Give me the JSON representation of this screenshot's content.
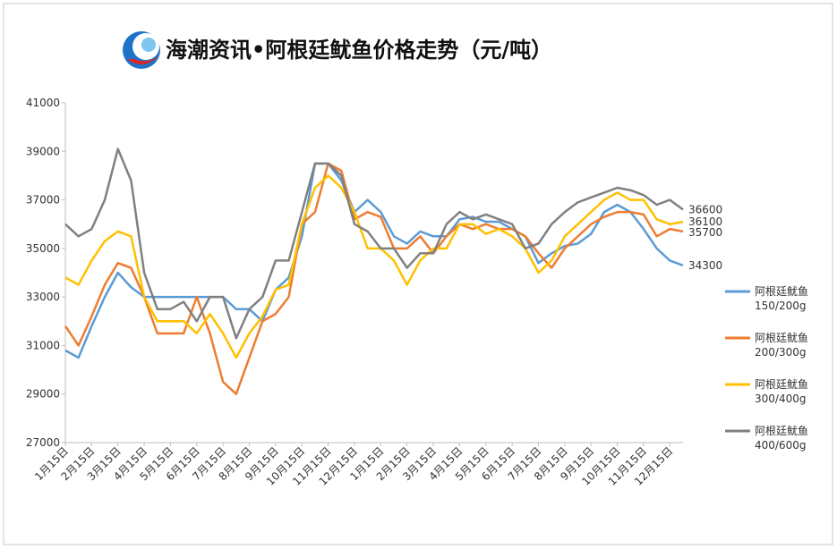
{
  "chart_data": {
    "type": "line",
    "title": "海潮资讯•阿根廷鱿鱼价格走势（元/吨）",
    "categories": [
      "1月15日",
      null,
      "2月15日",
      null,
      "3月15日",
      null,
      "4月15日",
      null,
      "5月15日",
      null,
      "6月15日",
      null,
      "7月15日",
      null,
      "8月15日",
      null,
      "9月15日",
      null,
      "10月15日",
      null,
      "11月15日",
      null,
      "12月15日",
      null,
      "1月15日",
      null,
      "2月15日",
      null,
      "3月15日",
      null,
      "4月15日",
      null,
      "5月15日",
      null,
      "6月15日",
      null,
      "7月15日",
      null,
      "8月15日",
      null,
      "9月15日",
      null,
      "10月15日",
      null,
      "11月15日",
      null,
      "12月15日",
      null
    ],
    "series": [
      {
        "name": "阿根廷鱿鱼\n150/200g",
        "color": "#5b9bd5",
        "values": [
          30800,
          30500,
          31800,
          33000,
          34000,
          33400,
          33000,
          33000,
          33000,
          33000,
          33000,
          33000,
          33000,
          32500,
          32500,
          32000,
          33300,
          33800,
          35500,
          38500,
          38500,
          37800,
          36500,
          37000,
          36500,
          35500,
          35200,
          35700,
          35500,
          35500,
          36200,
          36300,
          36100,
          36100,
          35800,
          35500,
          34400,
          34800,
          35100,
          35200,
          35600,
          36500,
          36800,
          36500,
          35800,
          35000,
          34500,
          34300
        ]
      },
      {
        "name": "阿根廷鱿鱼\n200/300g",
        "color": "#ed7d31",
        "values": [
          31800,
          31000,
          32200,
          33500,
          34400,
          34200,
          33000,
          31500,
          31500,
          31500,
          33000,
          31500,
          29500,
          29000,
          30500,
          32000,
          32300,
          33000,
          36000,
          36500,
          38500,
          38200,
          36200,
          36500,
          36300,
          35000,
          35000,
          35500,
          34800,
          35500,
          36000,
          35800,
          36000,
          35800,
          35800,
          35500,
          34800,
          34200,
          35000,
          35500,
          36000,
          36300,
          36500,
          36500,
          36400,
          35500,
          35800,
          35700
        ]
      },
      {
        "name": "阿根廷鱿鱼\n300/400g",
        "color": "#ffc000",
        "values": [
          33800,
          33500,
          34500,
          35300,
          35700,
          35500,
          33000,
          32000,
          32000,
          32000,
          31500,
          32300,
          31500,
          30500,
          31500,
          32200,
          33300,
          33500,
          36000,
          37500,
          38000,
          37500,
          36500,
          35000,
          35000,
          34500,
          33500,
          34500,
          35000,
          35000,
          36000,
          36000,
          35600,
          35800,
          35500,
          35000,
          34000,
          34500,
          35500,
          36000,
          36500,
          37000,
          37300,
          37000,
          37000,
          36200,
          36000,
          36100
        ]
      },
      {
        "name": "阿根廷鱿鱼\n400/600g",
        "color": "#808080",
        "values": [
          36000,
          35500,
          35800,
          37000,
          39100,
          37800,
          34000,
          32500,
          32500,
          32800,
          32000,
          33000,
          33000,
          31300,
          32500,
          33000,
          34500,
          34500,
          36500,
          38500,
          38500,
          38000,
          36000,
          35700,
          35000,
          35000,
          34200,
          34800,
          34800,
          36000,
          36500,
          36200,
          36400,
          36200,
          36000,
          35000,
          35200,
          36000,
          36500,
          36900,
          37100,
          37300,
          37500,
          37400,
          37200,
          36800,
          37000,
          36600
        ]
      }
    ],
    "ylim": [
      27000,
      41000
    ],
    "yticks": [
      27000,
      29000,
      31000,
      33000,
      35000,
      37000,
      39000,
      41000
    ]
  }
}
